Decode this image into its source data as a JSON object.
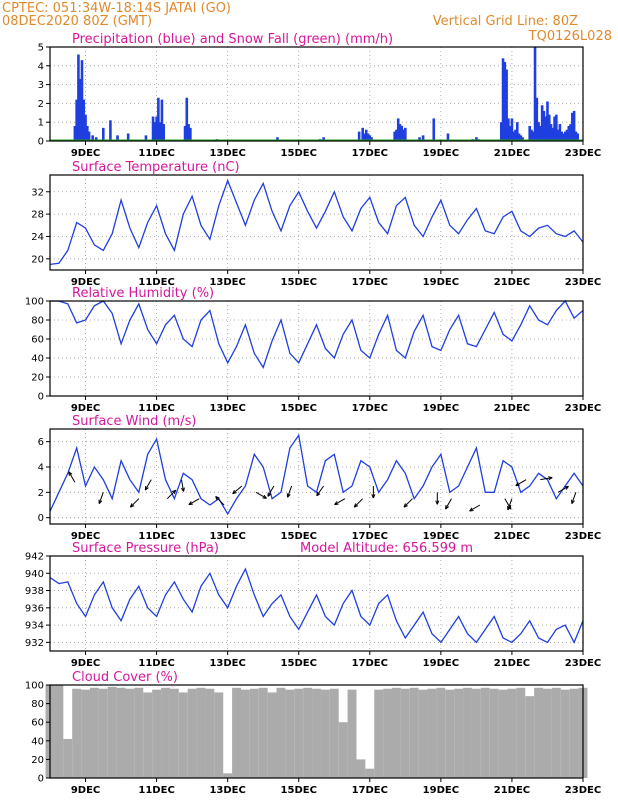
{
  "header": {
    "line1": "CPTEC:   051:34W-18:14S   JATAI (GO)",
    "line2": "08DEC2020 80Z (GMT)",
    "grid_note": "Vertical Grid Line: 80Z",
    "code": "TQ0126L028"
  },
  "colors": {
    "header_text": "#e08a2e",
    "panel_title": "#d6179a",
    "series_blue": "#1f3fe0",
    "snow_green": "#20a020",
    "cloud_gray": "#ababab"
  },
  "x_axis": {
    "start": "2020-12-08",
    "end": "2020-12-23",
    "tick_labels": [
      "9DEC",
      "11DEC",
      "13DEC",
      "15DEC",
      "17DEC",
      "19DEC",
      "21DEC",
      "23DEC"
    ],
    "tick_days": [
      9,
      11,
      13,
      15,
      17,
      19,
      21,
      23
    ]
  },
  "chart_data": [
    {
      "id": "precip",
      "type": "bar",
      "title": "Precipitation (blue) and Snow Fall (green) (mm/h)",
      "ylim": [
        0,
        5
      ],
      "yticks": [
        0,
        1,
        2,
        3,
        4,
        5
      ],
      "grid": true,
      "series": [
        {
          "name": "Precipitation",
          "x": [
            8.7,
            8.75,
            8.8,
            8.85,
            8.9,
            8.95,
            9.0,
            9.05,
            9.1,
            9.2,
            9.3,
            9.5,
            9.7,
            9.9,
            10.2,
            10.7,
            10.9,
            10.95,
            11.0,
            11.05,
            11.1,
            11.15,
            11.2,
            11.8,
            11.85,
            11.9,
            11.95,
            12.7,
            14.4,
            15.6,
            15.7,
            16.7,
            16.8,
            16.85,
            16.9,
            16.95,
            17.0,
            17.05,
            17.7,
            17.75,
            17.8,
            17.85,
            17.9,
            17.95,
            18.0,
            18.4,
            18.5,
            18.8,
            19.2,
            19.9,
            20.0,
            20.05,
            20.7,
            20.75,
            20.8,
            20.85,
            20.9,
            20.95,
            21.0,
            21.05,
            21.1,
            21.15,
            21.2,
            21.25,
            21.3,
            21.5,
            21.55,
            21.6,
            21.65,
            21.7,
            21.75,
            21.8,
            21.85,
            21.9,
            21.95,
            22.0,
            22.05,
            22.1,
            22.15,
            22.2,
            22.25,
            22.3,
            22.35,
            22.4,
            22.45,
            22.5,
            22.55,
            22.6,
            22.65,
            22.7,
            22.75,
            22.8,
            22.85
          ],
          "values": [
            0.8,
            2.2,
            4.6,
            3.3,
            4.3,
            2.2,
            1.4,
            0.8,
            0.5,
            0.3,
            0.2,
            0.7,
            1.1,
            0.3,
            0.4,
            0.3,
            1.3,
            1.0,
            1.3,
            2.3,
            1.0,
            2.2,
            0.9,
            0.8,
            2.3,
            0.9,
            0.7,
            0.1,
            0.2,
            0.1,
            0.2,
            0.5,
            0.7,
            0.4,
            0.6,
            0.4,
            0.3,
            0.2,
            0.5,
            0.6,
            1.2,
            0.9,
            0.8,
            0.6,
            0.7,
            0.2,
            0.3,
            1.2,
            0.4,
            0.1,
            0.2,
            0.1,
            1.0,
            4.4,
            4.2,
            3.8,
            1.2,
            0.8,
            1.2,
            0.5,
            0.6,
            1.0,
            0.4,
            0.3,
            0.2,
            0.8,
            0.6,
            0.5,
            5.0,
            2.3,
            1.0,
            0.8,
            1.9,
            1.6,
            1.3,
            2.1,
            1.4,
            0.9,
            0.7,
            1.3,
            1.4,
            0.6,
            0.9,
            0.5,
            0.4,
            0.5,
            0.6,
            0.8,
            0.9,
            1.5,
            1.6,
            0.5,
            0.4
          ]
        },
        {
          "name": "Snow Fall",
          "x": [
            8,
            23
          ],
          "values": [
            0,
            0
          ]
        }
      ]
    },
    {
      "id": "temp",
      "type": "line",
      "title": "Surface Temperature (nC)",
      "ylim": [
        18,
        35
      ],
      "yticks": [
        20,
        24,
        28,
        32
      ],
      "grid": true,
      "series": [
        {
          "name": "Temperature",
          "x": [
            8.0,
            8.25,
            8.5,
            8.75,
            9.0,
            9.25,
            9.5,
            9.75,
            10.0,
            10.25,
            10.5,
            10.75,
            11.0,
            11.25,
            11.5,
            11.75,
            12.0,
            12.25,
            12.5,
            12.75,
            13.0,
            13.25,
            13.5,
            13.75,
            14.0,
            14.25,
            14.5,
            14.75,
            15.0,
            15.25,
            15.5,
            15.75,
            16.0,
            16.25,
            16.5,
            16.75,
            17.0,
            17.25,
            17.5,
            17.75,
            18.0,
            18.25,
            18.5,
            18.75,
            19.0,
            19.25,
            19.5,
            19.75,
            20.0,
            20.25,
            20.5,
            20.75,
            21.0,
            21.25,
            21.5,
            21.75,
            22.0,
            22.25,
            22.5,
            22.75,
            23.0
          ],
          "values": [
            19.0,
            19.2,
            21.5,
            26.5,
            25.5,
            22.5,
            21.5,
            24.5,
            30.5,
            25.5,
            22.0,
            26.5,
            29.5,
            24.5,
            21.5,
            28.0,
            31.2,
            26.0,
            23.5,
            29.5,
            34.0,
            30.0,
            26.0,
            30.5,
            33.5,
            28.5,
            25.0,
            29.5,
            32.0,
            28.5,
            25.5,
            28.5,
            32.0,
            27.5,
            25.0,
            29.0,
            31.0,
            26.5,
            24.5,
            29.5,
            31.0,
            26.0,
            24.0,
            27.5,
            30.5,
            26.0,
            24.5,
            27.0,
            29.0,
            25.0,
            24.5,
            27.5,
            28.5,
            25.0,
            24.0,
            25.5,
            26.0,
            24.5,
            24.0,
            25.0,
            23.0
          ]
        }
      ]
    },
    {
      "id": "rh",
      "type": "line",
      "title": "Relative Humidity (%)",
      "ylim": [
        0,
        100
      ],
      "yticks": [
        0,
        20,
        40,
        60,
        80,
        100
      ],
      "grid": true,
      "series": [
        {
          "name": "Relative Humidity",
          "x": [
            8.0,
            8.25,
            8.5,
            8.75,
            9.0,
            9.25,
            9.5,
            9.75,
            10.0,
            10.25,
            10.5,
            10.75,
            11.0,
            11.25,
            11.5,
            11.75,
            12.0,
            12.25,
            12.5,
            12.75,
            13.0,
            13.25,
            13.5,
            13.75,
            14.0,
            14.25,
            14.5,
            14.75,
            15.0,
            15.25,
            15.5,
            15.75,
            16.0,
            16.25,
            16.5,
            16.75,
            17.0,
            17.25,
            17.5,
            17.75,
            18.0,
            18.25,
            18.5,
            18.75,
            19.0,
            19.25,
            19.5,
            19.75,
            20.0,
            20.25,
            20.5,
            20.75,
            21.0,
            21.25,
            21.5,
            21.75,
            22.0,
            22.25,
            22.5,
            22.75,
            23.0
          ],
          "values": [
            100,
            100,
            97,
            77,
            80,
            95,
            100,
            87,
            55,
            80,
            97,
            70,
            55,
            75,
            85,
            60,
            52,
            80,
            90,
            55,
            35,
            52,
            75,
            45,
            30,
            58,
            80,
            45,
            35,
            55,
            75,
            50,
            40,
            65,
            80,
            48,
            40,
            65,
            85,
            48,
            40,
            68,
            85,
            52,
            48,
            70,
            85,
            55,
            52,
            70,
            88,
            65,
            58,
            75,
            95,
            80,
            75,
            90,
            100,
            82,
            90
          ]
        }
      ]
    },
    {
      "id": "wind",
      "type": "line",
      "title": "Surface Wind (m/s)",
      "ylim": [
        -0.5,
        7.0
      ],
      "yticks": [
        0,
        2,
        4,
        6
      ],
      "grid": true,
      "series": [
        {
          "name": "Wind Speed",
          "x": [
            8.0,
            8.25,
            8.5,
            8.75,
            9.0,
            9.25,
            9.5,
            9.75,
            10.0,
            10.25,
            10.5,
            10.75,
            11.0,
            11.25,
            11.5,
            11.75,
            12.0,
            12.25,
            12.5,
            12.75,
            13.0,
            13.25,
            13.5,
            13.75,
            14.0,
            14.25,
            14.5,
            14.75,
            15.0,
            15.25,
            15.5,
            15.75,
            16.0,
            16.25,
            16.5,
            16.75,
            17.0,
            17.25,
            17.5,
            17.75,
            18.0,
            18.25,
            18.5,
            18.75,
            19.0,
            19.25,
            19.5,
            19.75,
            20.0,
            20.25,
            20.5,
            20.75,
            21.0,
            21.25,
            21.5,
            21.75,
            22.0,
            22.25,
            22.5,
            22.75,
            23.0
          ],
          "values": [
            0.5,
            2.0,
            3.5,
            5.5,
            2.5,
            4.0,
            3.0,
            1.5,
            4.5,
            3.0,
            2.0,
            5.0,
            6.2,
            3.0,
            1.5,
            3.5,
            3.0,
            1.5,
            1.0,
            1.5,
            0.3,
            1.5,
            2.5,
            5.0,
            4.0,
            1.5,
            2.0,
            5.5,
            6.5,
            2.5,
            2.0,
            4.5,
            5.0,
            2.0,
            2.5,
            4.5,
            4.0,
            2.0,
            3.0,
            4.5,
            3.5,
            1.5,
            2.5,
            4.0,
            5.0,
            2.0,
            2.5,
            4.0,
            5.5,
            2.0,
            2.0,
            4.5,
            4.0,
            2.0,
            2.5,
            3.5,
            3.0,
            1.5,
            2.5,
            3.5,
            2.5
          ]
        }
      ],
      "arrows": [
        {
          "x": 8.7,
          "speed": 2.8,
          "dir_deg": 330
        },
        {
          "x": 9.5,
          "speed": 2.0,
          "dir_deg": 200
        },
        {
          "x": 10.5,
          "speed": 1.5,
          "dir_deg": 225
        },
        {
          "x": 10.85,
          "speed": 3.0,
          "dir_deg": 210
        },
        {
          "x": 11.3,
          "speed": 1.5,
          "dir_deg": 45
        },
        {
          "x": 11.7,
          "speed": 3.0,
          "dir_deg": 170
        },
        {
          "x": 12.2,
          "speed": 1.5,
          "dir_deg": 240
        },
        {
          "x": 12.9,
          "speed": 1.0,
          "dir_deg": 315
        },
        {
          "x": 13.4,
          "speed": 2.5,
          "dir_deg": 230
        },
        {
          "x": 13.8,
          "speed": 2.0,
          "dir_deg": 120
        },
        {
          "x": 14.3,
          "speed": 2.5,
          "dir_deg": 210
        },
        {
          "x": 14.8,
          "speed": 2.5,
          "dir_deg": 200
        },
        {
          "x": 15.7,
          "speed": 2.5,
          "dir_deg": 215
        },
        {
          "x": 16.3,
          "speed": 1.5,
          "dir_deg": 240
        },
        {
          "x": 16.8,
          "speed": 1.5,
          "dir_deg": 225
        },
        {
          "x": 17.1,
          "speed": 2.5,
          "dir_deg": 180
        },
        {
          "x": 18.2,
          "speed": 1.5,
          "dir_deg": 225
        },
        {
          "x": 18.9,
          "speed": 2.0,
          "dir_deg": 180
        },
        {
          "x": 19.3,
          "speed": 1.5,
          "dir_deg": 210
        },
        {
          "x": 20.1,
          "speed": 1.0,
          "dir_deg": 240
        },
        {
          "x": 20.8,
          "speed": 1.5,
          "dir_deg": 150
        },
        {
          "x": 21.0,
          "speed": 1.5,
          "dir_deg": 200
        },
        {
          "x": 21.4,
          "speed": 3.0,
          "dir_deg": 240
        },
        {
          "x": 21.8,
          "speed": 3.0,
          "dir_deg": 80
        },
        {
          "x": 22.3,
          "speed": 2.0,
          "dir_deg": 60
        },
        {
          "x": 22.8,
          "speed": 2.0,
          "dir_deg": 200
        }
      ]
    },
    {
      "id": "pres",
      "type": "line",
      "title": "Surface Pressure (hPa)",
      "subtitle": "Model Altitude: 656.599  m",
      "ylim": [
        931,
        942
      ],
      "yticks": [
        932,
        934,
        936,
        938,
        940,
        942
      ],
      "grid": true,
      "series": [
        {
          "name": "Pressure",
          "x": [
            8.0,
            8.25,
            8.5,
            8.75,
            9.0,
            9.25,
            9.5,
            9.75,
            10.0,
            10.25,
            10.5,
            10.75,
            11.0,
            11.25,
            11.5,
            11.75,
            12.0,
            12.25,
            12.5,
            12.75,
            13.0,
            13.25,
            13.5,
            13.75,
            14.0,
            14.25,
            14.5,
            14.75,
            15.0,
            15.25,
            15.5,
            15.75,
            16.0,
            16.25,
            16.5,
            16.75,
            17.0,
            17.25,
            17.5,
            17.75,
            18.0,
            18.25,
            18.5,
            18.75,
            19.0,
            19.25,
            19.5,
            19.75,
            20.0,
            20.25,
            20.5,
            20.75,
            21.0,
            21.25,
            21.5,
            21.75,
            22.0,
            22.25,
            22.5,
            22.75,
            23.0
          ],
          "values": [
            939.5,
            938.8,
            939.0,
            936.5,
            935.0,
            937.5,
            939.0,
            936.0,
            934.5,
            937.0,
            938.5,
            936.0,
            935.0,
            937.5,
            939.0,
            937.0,
            935.5,
            938.5,
            940.0,
            937.5,
            936.0,
            938.5,
            940.5,
            937.5,
            935.0,
            936.5,
            937.5,
            935.0,
            933.5,
            935.5,
            937.5,
            935.0,
            934.0,
            936.5,
            938.0,
            935.0,
            934.0,
            936.5,
            937.5,
            934.5,
            932.5,
            934.0,
            935.5,
            933.0,
            932.0,
            933.5,
            935.0,
            933.0,
            932.0,
            933.5,
            935.0,
            932.5,
            932.0,
            933.0,
            934.5,
            932.5,
            932.0,
            933.5,
            934.0,
            932.0,
            934.5
          ]
        }
      ]
    },
    {
      "id": "cloud",
      "type": "area",
      "title": "Cloud Cover (%)",
      "ylim": [
        0,
        100
      ],
      "yticks": [
        0,
        20,
        40,
        60,
        80,
        100
      ],
      "grid": false,
      "series": [
        {
          "name": "Cloud Cover",
          "x": [
            8.0,
            8.25,
            8.5,
            8.75,
            9.0,
            9.25,
            9.5,
            9.75,
            10.0,
            10.25,
            10.5,
            10.75,
            11.0,
            11.25,
            11.5,
            11.75,
            12.0,
            12.25,
            12.5,
            12.75,
            13.0,
            13.25,
            13.5,
            13.75,
            14.0,
            14.25,
            14.5,
            14.75,
            15.0,
            15.25,
            15.5,
            15.75,
            16.0,
            16.25,
            16.5,
            16.75,
            17.0,
            17.25,
            17.5,
            17.75,
            18.0,
            18.25,
            18.5,
            18.75,
            19.0,
            19.25,
            19.5,
            19.75,
            20.0,
            20.25,
            20.5,
            20.75,
            21.0,
            21.25,
            21.5,
            21.75,
            22.0,
            22.25,
            22.5,
            22.75,
            23.0
          ],
          "values": [
            100,
            100,
            42,
            96,
            95,
            97,
            96,
            98,
            97,
            96,
            97,
            92,
            95,
            97,
            96,
            92,
            96,
            97,
            96,
            92,
            5,
            97,
            95,
            96,
            97,
            92,
            97,
            95,
            96,
            97,
            96,
            95,
            96,
            60,
            95,
            20,
            10,
            95,
            96,
            97,
            96,
            97,
            95,
            96,
            97,
            95,
            96,
            97,
            96,
            97,
            96,
            95,
            96,
            97,
            88,
            97,
            96,
            97,
            95,
            96,
            97
          ]
        }
      ]
    }
  ]
}
